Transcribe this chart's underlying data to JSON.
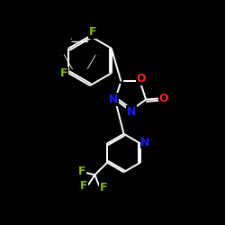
{
  "background_color": "#000000",
  "atom_colors": {
    "C": "#ffffff",
    "N": "#1a1aff",
    "O": "#ff2020",
    "F": "#88bb00"
  },
  "figsize": [
    2.5,
    2.5
  ],
  "dpi": 100
}
